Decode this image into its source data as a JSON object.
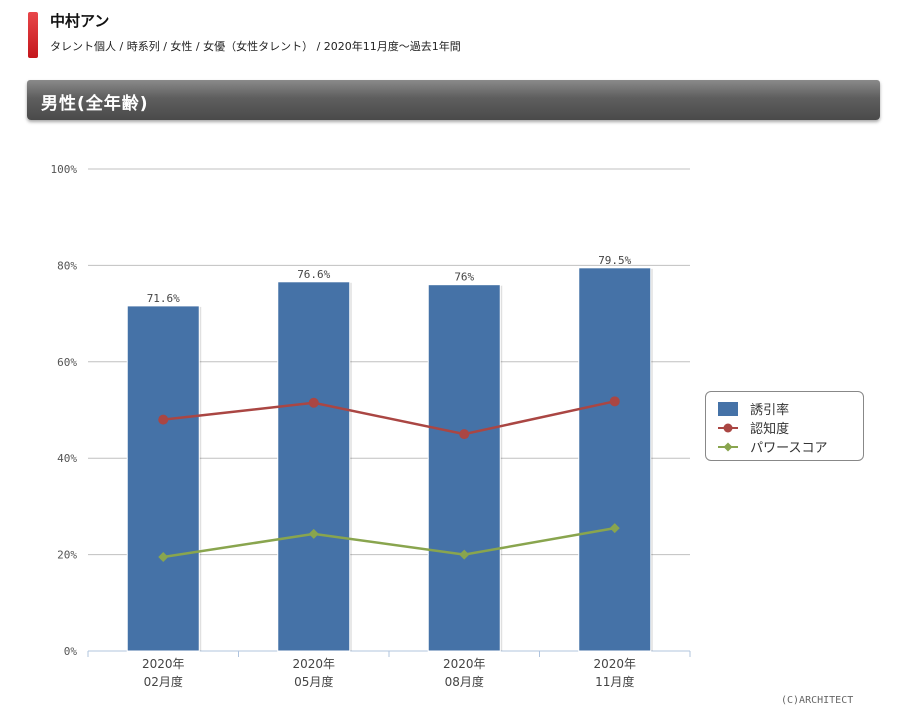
{
  "header": {
    "talent_name": "中村アン",
    "breadcrumb": "タレント個人 / 時系列 / 女性 / 女優（女性タレント） / 2020年11月度～過去1年間"
  },
  "section": {
    "title": "男性(全年齢)"
  },
  "copyright": "(C)ARCHITECT",
  "chart_data": {
    "type": "bar",
    "categories": [
      "2020年\n02月度",
      "2020年\n05月度",
      "2020年\n08月度",
      "2020年\n11月度"
    ],
    "ylim": [
      0,
      100
    ],
    "yticks": [
      "0%",
      "20%",
      "40%",
      "60%",
      "80%",
      "100%"
    ],
    "series": [
      {
        "name": "誘引率",
        "type": "bar",
        "values": [
          71.6,
          76.6,
          76,
          79.5
        ],
        "labels": [
          "71.6%",
          "76.6%",
          "76%",
          "79.5%"
        ],
        "color": "#4572a7"
      },
      {
        "name": "認知度",
        "type": "line",
        "values": [
          48,
          51.5,
          45,
          51.8
        ],
        "color": "#aa4643"
      },
      {
        "name": "パワースコア",
        "type": "line",
        "values": [
          19.5,
          24.3,
          20,
          25.5
        ],
        "color": "#89a54e"
      }
    ],
    "legend_position": "right",
    "grid": true
  }
}
